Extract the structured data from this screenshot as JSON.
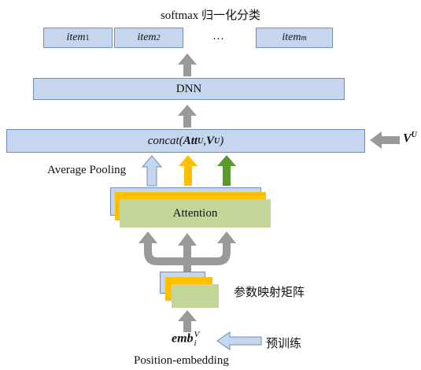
{
  "title": "softmax 归一化分类",
  "items": [
    {
      "name": "item",
      "sub": "1"
    },
    {
      "name": "item",
      "sub": "2"
    },
    {
      "name": "item",
      "sub": "m"
    }
  ],
  "ellipsis": "…",
  "dnn_label": "DNN",
  "concat": {
    "func": "concat(",
    "att": "Att",
    "att_sup": "U",
    "comma": ",",
    "v": "V",
    "v_sup": "U",
    "close": ")"
  },
  "vu_side": {
    "v": "V",
    "sup": "U"
  },
  "average_pooling": "Average Pooling",
  "attention_label": "Attention",
  "param_matrix": "参数映射矩阵",
  "emb": {
    "base": "emb",
    "sub": "i",
    "sup": "V"
  },
  "pretrain": "预训练",
  "position_embedding": "Position-embedding",
  "colors": {
    "box_fill": "#c5d6ee",
    "box_border": "#6f8fb8",
    "arrow_gray": "#9a9a9a",
    "orange": "#ffc000",
    "green_arrow": "#5a9a2a",
    "green_fill": "#c4d79b"
  }
}
